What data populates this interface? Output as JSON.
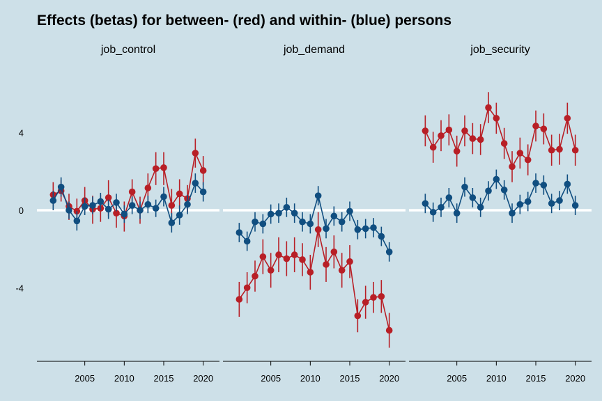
{
  "title": "Effects (betas) for between- (red) and within- (blue) persons",
  "colors": {
    "background": "#cde0e8",
    "between": "#b81f26",
    "within": "#104e80",
    "zero_line": "#ffffff",
    "axis": "#000000"
  },
  "chart_data": {
    "type": "line",
    "title": "Effects (betas) for between- (red) and within- (blue) persons",
    "xlabel": "",
    "ylabel": "",
    "xlim": [
      2000,
      2021
    ],
    "ylim": [
      -7.8,
      7.8
    ],
    "x_ticks": [
      2005,
      2010,
      2015,
      2020
    ],
    "y_ticks": [
      4,
      0,
      -4
    ],
    "y_tick_labels": [
      "4",
      "0",
      "-4"
    ],
    "grid": false,
    "legend": "none",
    "x": [
      2001,
      2002,
      2003,
      2004,
      2005,
      2006,
      2007,
      2008,
      2009,
      2010,
      2011,
      2012,
      2013,
      2014,
      2015,
      2016,
      2017,
      2018,
      2019,
      2020
    ],
    "panels": [
      {
        "label": "job_control",
        "series": [
          {
            "key": "between",
            "values": [
              0.8,
              1.0,
              0.2,
              -0.05,
              0.5,
              0.05,
              0.1,
              0.65,
              -0.15,
              -0.3,
              0.95,
              0.0,
              1.15,
              2.15,
              2.2,
              0.25,
              0.85,
              0.6,
              2.95,
              2.05
            ],
            "ci_low": [
              0.2,
              0.45,
              -0.5,
              -0.7,
              -0.2,
              -0.7,
              -0.6,
              -0.3,
              -0.9,
              -1.1,
              0.3,
              -0.7,
              0.4,
              1.3,
              1.3,
              -0.6,
              0.1,
              -0.1,
              2.2,
              1.3
            ],
            "ci_high": [
              1.45,
              1.55,
              0.85,
              0.6,
              1.2,
              0.75,
              0.8,
              1.55,
              0.6,
              0.45,
              1.6,
              0.7,
              1.9,
              3.0,
              3.0,
              1.1,
              1.6,
              1.3,
              3.7,
              2.8
            ]
          },
          {
            "key": "within",
            "values": [
              0.5,
              1.2,
              0.0,
              -0.55,
              0.2,
              0.25,
              0.45,
              0.05,
              0.4,
              -0.2,
              0.25,
              0.0,
              0.3,
              0.1,
              0.7,
              -0.65,
              -0.25,
              0.3,
              1.4,
              0.95
            ],
            "ci_low": [
              0.0,
              0.7,
              -0.45,
              -1.05,
              -0.25,
              -0.2,
              0.0,
              -0.45,
              -0.05,
              -0.65,
              -0.2,
              -0.45,
              -0.15,
              -0.35,
              0.2,
              -1.15,
              -0.75,
              -0.2,
              0.9,
              0.45
            ],
            "ci_high": [
              1.0,
              1.7,
              0.45,
              -0.05,
              0.65,
              0.7,
              0.9,
              0.55,
              0.85,
              0.25,
              0.7,
              0.45,
              0.75,
              0.55,
              1.2,
              -0.15,
              0.25,
              0.8,
              1.9,
              1.45
            ]
          }
        ]
      },
      {
        "label": "job_demand",
        "series": [
          {
            "key": "between",
            "values": [
              -4.6,
              -4.0,
              -3.4,
              -2.4,
              -3.1,
              -2.3,
              -2.5,
              -2.3,
              -2.55,
              -3.2,
              -1.0,
              -2.8,
              -2.15,
              -3.1,
              -2.65,
              -5.45,
              -4.75,
              -4.5,
              -4.45,
              -6.2
            ],
            "ci_low": [
              -5.5,
              -4.8,
              -4.2,
              -3.3,
              -4.0,
              -3.2,
              -3.4,
              -3.2,
              -3.4,
              -4.1,
              -1.9,
              -3.7,
              -3.0,
              -4.0,
              -3.5,
              -6.3,
              -5.6,
              -5.3,
              -5.3,
              -7.1
            ],
            "ci_high": [
              -3.7,
              -3.2,
              -2.6,
              -1.5,
              -2.2,
              -1.4,
              -1.6,
              -1.4,
              -1.7,
              -2.3,
              -0.1,
              -1.9,
              -1.3,
              -2.2,
              -1.8,
              -4.6,
              -3.9,
              -3.7,
              -3.6,
              -5.3
            ]
          },
          {
            "key": "within",
            "values": [
              -1.15,
              -1.6,
              -0.6,
              -0.7,
              -0.2,
              -0.15,
              0.15,
              -0.15,
              -0.6,
              -0.7,
              0.75,
              -0.95,
              -0.3,
              -0.6,
              -0.05,
              -1.0,
              -0.95,
              -0.9,
              -1.35,
              -2.15
            ],
            "ci_low": [
              -1.65,
              -2.1,
              -1.1,
              -1.2,
              -0.7,
              -0.65,
              -0.35,
              -0.65,
              -1.1,
              -1.2,
              0.25,
              -1.45,
              -0.8,
              -1.1,
              -0.55,
              -1.5,
              -1.45,
              -1.4,
              -1.85,
              -2.65
            ],
            "ci_high": [
              -0.65,
              -1.1,
              -0.1,
              -0.2,
              0.3,
              0.35,
              0.65,
              0.35,
              -0.1,
              -0.2,
              1.25,
              -0.45,
              0.2,
              -0.1,
              0.45,
              -0.5,
              -0.45,
              -0.4,
              -0.85,
              -1.65
            ]
          }
        ]
      },
      {
        "label": "job_security",
        "series": [
          {
            "key": "between",
            "values": [
              4.1,
              3.25,
              3.85,
              4.15,
              3.05,
              4.1,
              3.7,
              3.65,
              5.3,
              4.75,
              3.45,
              2.25,
              2.95,
              2.6,
              4.35,
              4.2,
              3.1,
              3.15,
              4.75,
              3.1
            ],
            "ci_low": [
              3.3,
              2.45,
              3.05,
              3.35,
              2.25,
              3.3,
              2.9,
              2.85,
              4.5,
              3.95,
              2.65,
              1.45,
              2.15,
              1.8,
              3.55,
              3.4,
              2.3,
              2.35,
              3.95,
              2.3
            ],
            "ci_high": [
              4.9,
              4.05,
              4.65,
              4.95,
              3.85,
              4.9,
              4.5,
              4.45,
              6.1,
              5.55,
              4.25,
              3.05,
              3.75,
              3.4,
              5.15,
              5.0,
              3.9,
              3.95,
              5.55,
              3.9
            ]
          },
          {
            "key": "within",
            "values": [
              0.35,
              -0.1,
              0.15,
              0.65,
              -0.15,
              1.2,
              0.65,
              0.15,
              1.0,
              1.6,
              1.05,
              -0.15,
              0.3,
              0.45,
              1.4,
              1.3,
              0.35,
              0.5,
              1.35,
              0.25
            ],
            "ci_low": [
              -0.15,
              -0.6,
              -0.35,
              0.15,
              -0.65,
              0.7,
              0.15,
              -0.35,
              0.5,
              1.1,
              0.55,
              -0.65,
              -0.2,
              -0.05,
              0.9,
              0.8,
              -0.15,
              0.0,
              0.85,
              -0.25
            ],
            "ci_high": [
              0.85,
              0.4,
              0.65,
              1.15,
              0.35,
              1.7,
              1.15,
              0.65,
              1.5,
              2.1,
              1.55,
              0.35,
              0.8,
              0.95,
              1.9,
              1.8,
              0.85,
              1.0,
              1.85,
              0.75
            ]
          }
        ]
      }
    ]
  }
}
